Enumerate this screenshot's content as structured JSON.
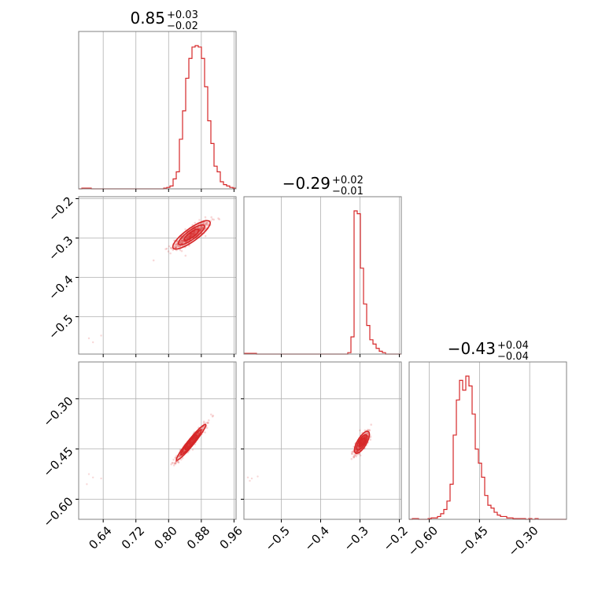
{
  "chart_data": {
    "type": "corner",
    "color": "#d62728",
    "parameters": [
      {
        "range": [
          0.58,
          0.965
        ],
        "ticks": [
          0.64,
          0.72,
          0.8,
          0.88,
          0.96
        ],
        "tick_labels": [
          "0.64",
          "0.72",
          "0.80",
          "0.88",
          "0.96"
        ],
        "title": {
          "median": "0.85",
          "upper": "+0.03",
          "lower": "−0.02"
        }
      },
      {
        "range": [
          -0.595,
          -0.195
        ],
        "ticks": [
          -0.5,
          -0.4,
          -0.3,
          -0.2
        ],
        "tick_labels": [
          "−0.5",
          "−0.4",
          "−0.3",
          "−0.2"
        ],
        "title": {
          "median": "−0.29",
          "upper": "+0.02",
          "lower": "−0.01"
        }
      },
      {
        "range": [
          -0.66,
          -0.19
        ],
        "ticks": [
          -0.6,
          -0.45,
          -0.3
        ],
        "tick_labels": [
          "−0.60",
          "−0.45",
          "−0.30"
        ],
        "title": {
          "median": "−0.43",
          "upper": "+0.04",
          "lower": "−0.04"
        }
      }
    ],
    "histograms": [
      {
        "param": 0,
        "bin_start": 0.58,
        "bin_width": 0.0077,
        "counts": [
          0,
          0.5,
          0.5,
          0.5,
          0,
          0,
          0,
          0,
          0,
          0,
          0,
          0,
          0,
          0,
          0,
          0,
          0,
          0,
          0,
          0,
          0,
          0,
          0,
          0,
          0,
          0,
          0,
          0.5,
          1,
          2,
          7,
          12,
          35,
          55,
          78,
          92,
          100,
          101,
          100,
          92,
          72,
          48,
          32,
          16,
          12,
          5,
          3,
          2,
          1,
          0.5
        ]
      },
      {
        "param": 1,
        "bin_start": -0.595,
        "bin_width": 0.008,
        "counts": [
          0.5,
          0.5,
          0.5,
          0.5,
          0,
          0,
          0,
          0,
          0,
          0,
          0,
          0,
          0,
          0,
          0,
          0,
          0,
          0,
          0,
          0,
          0,
          0,
          0,
          0,
          0,
          0,
          0,
          0,
          0,
          0,
          0,
          0,
          0,
          1,
          12,
          100,
          98,
          60,
          35,
          20,
          10,
          7,
          4,
          2,
          1,
          0,
          0,
          0,
          0,
          0
        ]
      },
      {
        "param": 2,
        "bin_start": -0.66,
        "bin_width": 0.0094,
        "counts": [
          0,
          0.5,
          0.5,
          0,
          0,
          0,
          0.5,
          1,
          1,
          2,
          4,
          7,
          13,
          25,
          60,
          85,
          99,
          92,
          102,
          95,
          75,
          50,
          40,
          30,
          17,
          10,
          8,
          5,
          3,
          2,
          2,
          1,
          1,
          0.5,
          0.5,
          0.5,
          0.5,
          0,
          0.5,
          0,
          0.5,
          0,
          0,
          0,
          0,
          0,
          0,
          0,
          0,
          0
        ]
      }
    ],
    "pairs": [
      {
        "x_param": 0,
        "y_param": 1,
        "center": [
          0.856,
          -0.292
        ],
        "slope": 0.75,
        "sd_along": 0.028,
        "sd_perp": 0.008,
        "outliers": [
          [
            0.605,
            -0.555
          ],
          [
            0.615,
            -0.565
          ],
          [
            0.635,
            -0.548
          ]
        ]
      },
      {
        "x_param": 0,
        "y_param": 2,
        "center": [
          0.855,
          -0.43
        ],
        "slope": 1.5,
        "sd_along": 0.032,
        "sd_perp": 0.004,
        "outliers": [
          [
            0.605,
            -0.525
          ],
          [
            0.615,
            -0.535
          ],
          [
            0.635,
            -0.538
          ],
          [
            0.6,
            -0.555
          ]
        ]
      },
      {
        "x_param": 1,
        "y_param": 2,
        "center": [
          -0.295,
          -0.43
        ],
        "slope": 2.0,
        "sd_along": 0.018,
        "sd_perp": 0.006,
        "outliers": [
          [
            -0.585,
            -0.535
          ],
          [
            -0.575,
            -0.538
          ],
          [
            -0.56,
            -0.532
          ],
          [
            -0.58,
            -0.545
          ]
        ]
      }
    ],
    "grid": true,
    "legend": "none"
  }
}
